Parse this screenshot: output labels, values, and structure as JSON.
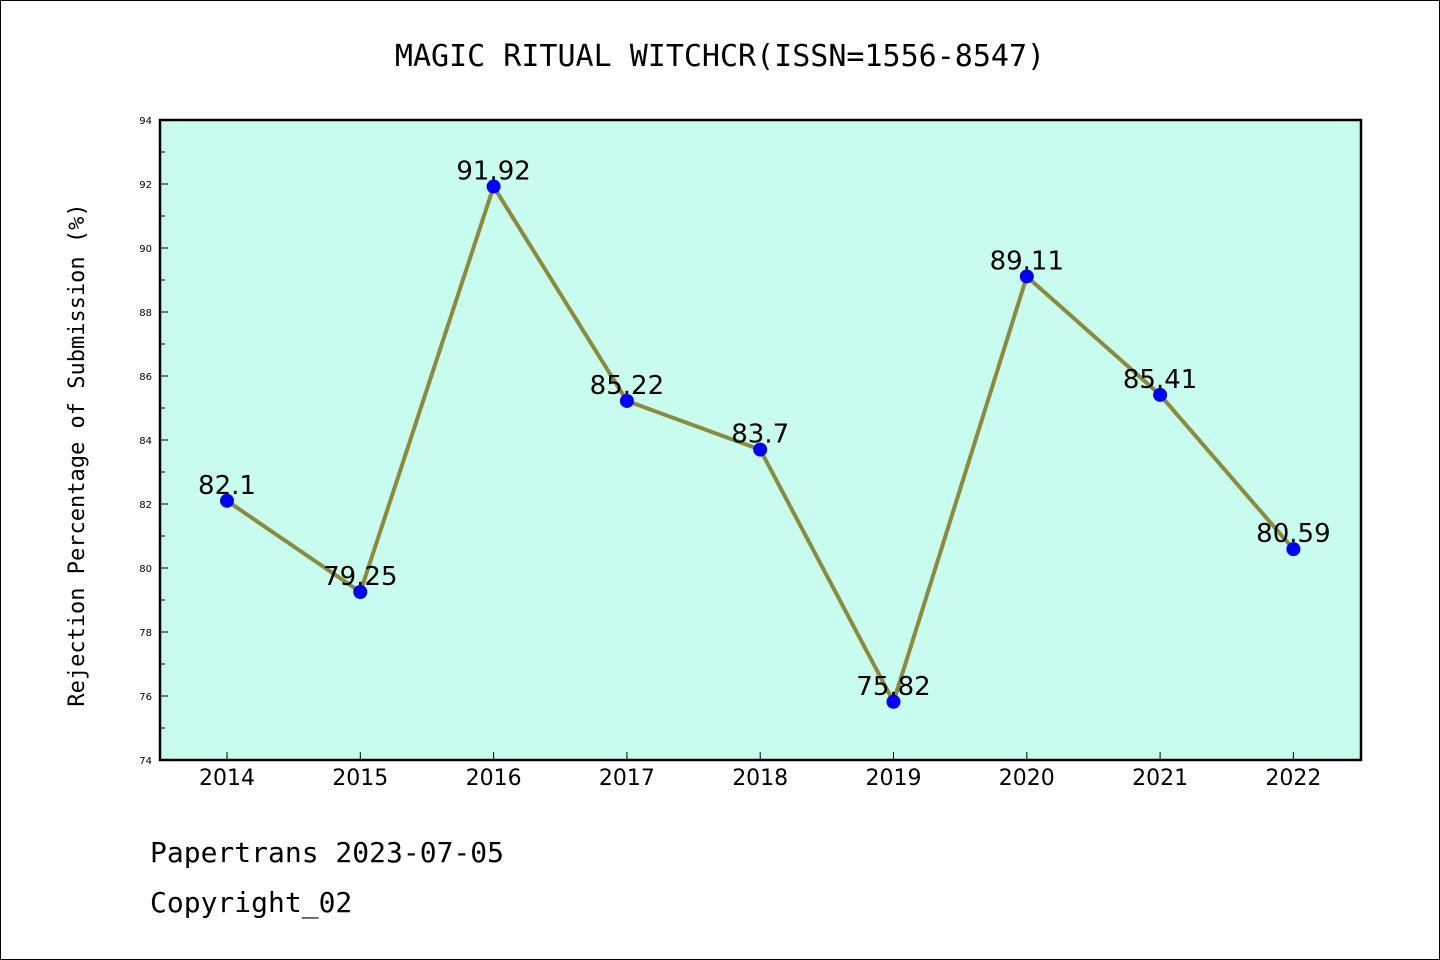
{
  "chart_data": {
    "type": "line",
    "title": "MAGIC RITUAL WITCHCR(ISSN=1556-8547)",
    "xlabel": "",
    "ylabel": "Rejection Percentage of Submission (%)",
    "categories": [
      "2014",
      "2015",
      "2016",
      "2017",
      "2018",
      "2019",
      "2020",
      "2021",
      "2022"
    ],
    "series": [
      {
        "values": [
          82.1,
          79.25,
          91.92,
          85.22,
          83.7,
          75.82,
          89.11,
          85.41,
          80.59
        ],
        "labels": [
          "82.1",
          "79.25",
          "91.92",
          "85.22",
          "83.7",
          "75.82",
          "89.11",
          "85.41",
          "80.59"
        ]
      }
    ],
    "ylim": [
      74,
      94
    ],
    "yticks": [
      "74",
      "76",
      "78",
      "80",
      "82",
      "84",
      "86",
      "88",
      "90",
      "92",
      "94"
    ],
    "grid": false,
    "legend": "none",
    "colors": {
      "plot_background": "#c8fcee",
      "line": "#8b8b3a",
      "marker": "#0000ff"
    }
  },
  "footer": {
    "source": "Papertrans 2023-07-05",
    "copyright": "Copyright_02"
  }
}
